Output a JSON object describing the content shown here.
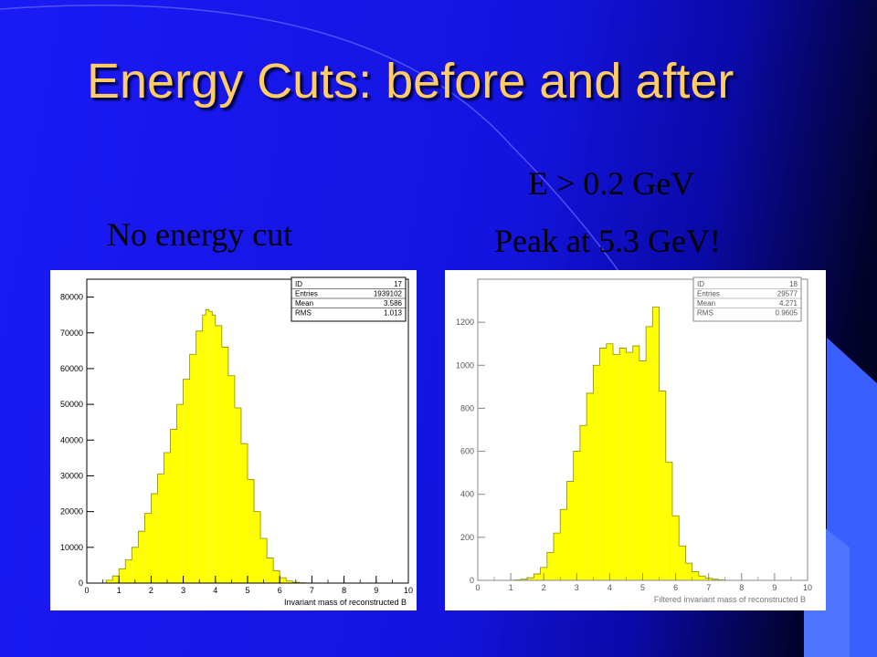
{
  "slide": {
    "title": "Energy Cuts: before and after",
    "caption_left": "No energy cut",
    "caption_right_line1": "E > 0.2 GeV",
    "caption_right_line2": "Peak at 5.3 GeV!",
    "colors": {
      "title": "#ffcc66",
      "background": "#1a1af5",
      "fill": "#ffff00",
      "outline": "#8a8a00"
    }
  },
  "chart_data": [
    {
      "type": "bar",
      "xlabel": "Invariant mass of reconstructed B",
      "xlim": [
        0,
        10
      ],
      "ylim": [
        0,
        85000
      ],
      "xticks": [
        "0",
        "1",
        "2",
        "3",
        "4",
        "5",
        "6",
        "7",
        "8",
        "9",
        "10"
      ],
      "yticks": [
        "0",
        "10000",
        "20000",
        "30000",
        "40000",
        "50000",
        "60000",
        "70000",
        "80000"
      ],
      "stats": [
        {
          "label": "ID",
          "value": "17"
        },
        {
          "label": "Entries",
          "value": "1939102"
        },
        {
          "label": "Mean",
          "value": "3.586"
        },
        {
          "label": "RMS",
          "value": "1.013"
        }
      ],
      "x": [
        0.4,
        0.6,
        0.8,
        1.0,
        1.2,
        1.4,
        1.6,
        1.8,
        2.0,
        2.2,
        2.4,
        2.6,
        2.8,
        3.0,
        3.2,
        3.4,
        3.6,
        3.7,
        3.8,
        3.9,
        4.0,
        4.2,
        4.4,
        4.6,
        4.8,
        5.0,
        5.2,
        5.4,
        5.6,
        5.8,
        6.0,
        6.2,
        6.4,
        6.6,
        6.8,
        7.0
      ],
      "values": [
        0,
        800,
        2000,
        4000,
        6500,
        10000,
        14500,
        19500,
        25000,
        30500,
        36500,
        43000,
        50000,
        57000,
        64000,
        70500,
        75000,
        76500,
        76000,
        75000,
        72000,
        66000,
        58000,
        49000,
        39000,
        29000,
        20000,
        12500,
        7000,
        3500,
        1500,
        600,
        250,
        100,
        30,
        0
      ]
    },
    {
      "type": "bar",
      "xlabel": "Filtered invariant mass of reconstructed B",
      "xlim": [
        0,
        10
      ],
      "ylim": [
        0,
        1400
      ],
      "xticks": [
        "0",
        "1",
        "2",
        "3",
        "4",
        "5",
        "6",
        "7",
        "8",
        "9",
        "10"
      ],
      "yticks": [
        "0",
        "200",
        "400",
        "600",
        "800",
        "1000",
        "1200"
      ],
      "stats": [
        {
          "label": "ID",
          "value": "18"
        },
        {
          "label": "Entries",
          "value": "29577"
        },
        {
          "label": "Mean",
          "value": "4.271"
        },
        {
          "label": "RMS",
          "value": "0.9605"
        }
      ],
      "x": [
        1.1,
        1.3,
        1.5,
        1.7,
        1.9,
        2.1,
        2.3,
        2.5,
        2.7,
        2.9,
        3.1,
        3.3,
        3.5,
        3.7,
        3.9,
        4.1,
        4.3,
        4.5,
        4.7,
        4.9,
        5.1,
        5.3,
        5.5,
        5.7,
        5.9,
        6.1,
        6.3,
        6.5,
        6.7,
        6.9,
        7.1,
        7.3,
        7.5
      ],
      "values": [
        2,
        5,
        12,
        30,
        60,
        130,
        220,
        330,
        460,
        600,
        720,
        870,
        1000,
        1080,
        1100,
        1050,
        1080,
        1060,
        1090,
        1020,
        1180,
        1270,
        880,
        550,
        300,
        160,
        80,
        40,
        20,
        10,
        5,
        2,
        0
      ]
    }
  ]
}
